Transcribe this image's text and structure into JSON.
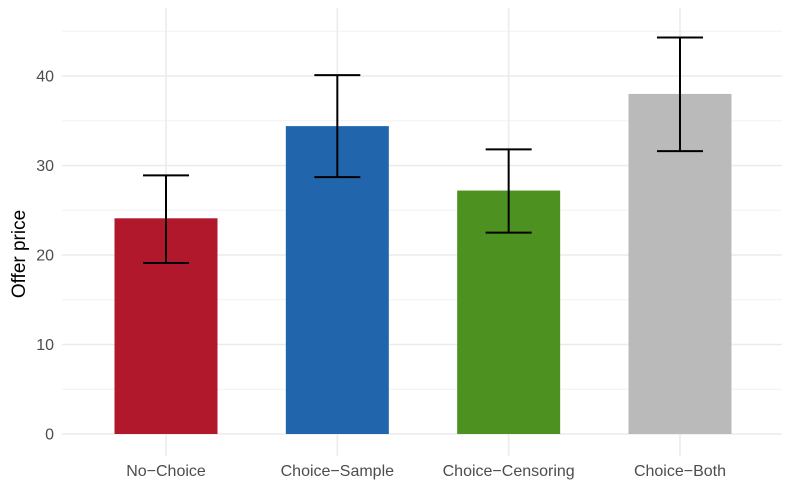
{
  "chart_data": {
    "type": "bar",
    "title": "",
    "xlabel": "",
    "ylabel": "Offer price",
    "categories": [
      "No−Choice",
      "Choice−Sample",
      "Choice−Censoring",
      "Choice−Both"
    ],
    "values": [
      24.1,
      34.4,
      27.2,
      38.0
    ],
    "error_low": [
      19.1,
      28.7,
      22.5,
      31.6
    ],
    "error_high": [
      28.9,
      40.1,
      31.8,
      44.3
    ],
    "colors": [
      "#b2182b",
      "#2166ac",
      "#4d9221",
      "#bababa"
    ],
    "ylim": [
      0,
      46
    ],
    "yticks": [
      0,
      10,
      20,
      30,
      40
    ],
    "grid": true,
    "legend": "none"
  }
}
